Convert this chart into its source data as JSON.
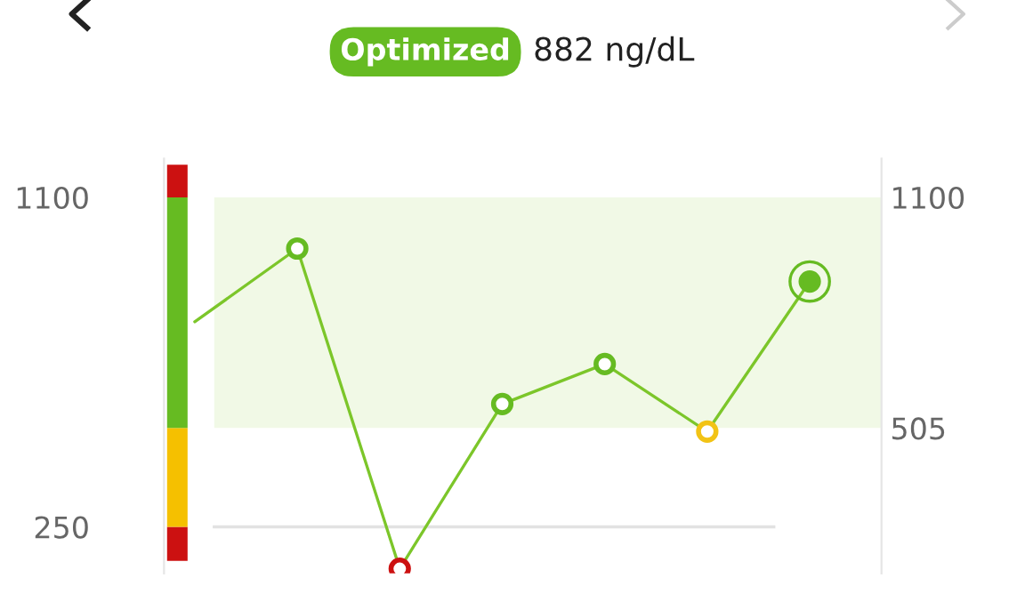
{
  "chart_data": {
    "type": "line",
    "title": "Optimized",
    "subtitle": "882 ng/dL",
    "categories": [
      null,
      null,
      null,
      null,
      null,
      null,
      null
    ],
    "series": [
      {
        "color": "#7cc62a",
        "values": [
          779,
          968,
          142,
          567,
          670,
          496,
          883
        ],
        "colors": [
          null,
          "#66bb22",
          "#cc1111",
          "#66bb22",
          "#66bb22",
          "#f2c315",
          "#66bb22"
        ]
      }
    ],
    "ylim": [
      130,
      1200
    ],
    "yticks": [
      250,
      1100
    ],
    "y2lim": [
      130,
      1200
    ],
    "y2ticks": [
      505,
      1100
    ],
    "bands": [
      {
        "axis": "y",
        "from": 505,
        "to": 1100,
        "color": "#f1f9e6"
      }
    ],
    "ref_lines": [
      {
        "axis": "y",
        "value": 250,
        "color": "#e2e2e2"
      }
    ],
    "marker": "circle",
    "grid": false,
    "legend": false
  }
}
